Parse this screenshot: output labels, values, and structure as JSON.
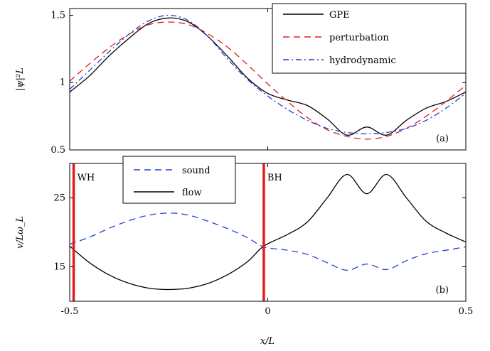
{
  "chart_data": [
    {
      "type": "line",
      "panel_tag": "(a)",
      "ylabel": "|ψ|²L",
      "ylim": [
        0.5,
        1.55
      ],
      "xlim": [
        -0.5,
        0.5
      ],
      "yticks": [
        {
          "value": 0.5,
          "label": "0.5"
        },
        {
          "value": 1.0,
          "label": "1"
        },
        {
          "value": 1.5,
          "label": "1.5"
        }
      ],
      "legend_position": "top-right",
      "grid": false,
      "series": [
        {
          "name": "GPE",
          "color": "#000000",
          "dash": "solid",
          "x": [
            -0.5,
            -0.45,
            -0.4,
            -0.35,
            -0.3,
            -0.25,
            -0.2,
            -0.15,
            -0.1,
            -0.05,
            0.0,
            0.05,
            0.1,
            0.15,
            0.2,
            0.25,
            0.3,
            0.35,
            0.4,
            0.45,
            0.5
          ],
          "y": [
            0.93,
            1.05,
            1.2,
            1.33,
            1.44,
            1.48,
            1.45,
            1.34,
            1.19,
            1.03,
            0.92,
            0.87,
            0.83,
            0.73,
            0.61,
            0.67,
            0.61,
            0.72,
            0.81,
            0.86,
            0.93
          ]
        },
        {
          "name": "perturbation",
          "color": "#e41a1c",
          "dash": "dashed",
          "x": [
            -0.5,
            -0.45,
            -0.4,
            -0.35,
            -0.3,
            -0.25,
            -0.2,
            -0.15,
            -0.1,
            -0.05,
            0.0,
            0.05,
            0.1,
            0.15,
            0.2,
            0.25,
            0.3,
            0.35,
            0.4,
            0.45,
            0.5
          ],
          "y": [
            1.01,
            1.14,
            1.26,
            1.36,
            1.43,
            1.45,
            1.43,
            1.36,
            1.26,
            1.13,
            0.99,
            0.86,
            0.74,
            0.65,
            0.6,
            0.58,
            0.6,
            0.66,
            0.75,
            0.86,
            0.98
          ]
        },
        {
          "name": "hydrodynamic",
          "color": "#1f3fd6",
          "dash": "dashdot",
          "x": [
            -0.5,
            -0.45,
            -0.4,
            -0.35,
            -0.3,
            -0.25,
            -0.2,
            -0.15,
            -0.1,
            -0.05,
            0.0,
            0.05,
            0.1,
            0.15,
            0.2,
            0.25,
            0.3,
            0.35,
            0.4,
            0.45,
            0.5
          ],
          "y": [
            0.95,
            1.09,
            1.23,
            1.36,
            1.46,
            1.5,
            1.46,
            1.34,
            1.17,
            1.02,
            0.9,
            0.8,
            0.72,
            0.66,
            0.63,
            0.62,
            0.63,
            0.66,
            0.72,
            0.81,
            0.92
          ]
        }
      ]
    },
    {
      "type": "line",
      "panel_tag": "(b)",
      "ylabel": "v/Lω_L",
      "xlabel": "x/L",
      "ylim": [
        10,
        30
      ],
      "xlim": [
        -0.5,
        0.5
      ],
      "yticks": [
        {
          "value": 15,
          "label": "15"
        },
        {
          "value": 25,
          "label": "25"
        }
      ],
      "xticks": [
        {
          "value": -0.5,
          "label": "-0.5"
        },
        {
          "value": 0.0,
          "label": "0"
        },
        {
          "value": 0.5,
          "label": "0.5"
        }
      ],
      "legend_position": "top-left",
      "grid": false,
      "vertical_markers": [
        {
          "label": "WH",
          "x": -0.49,
          "color": "#e41a1c"
        },
        {
          "label": "BH",
          "x": -0.01,
          "color": "#e41a1c"
        }
      ],
      "series": [
        {
          "name": "sound",
          "color": "#1f3fd6",
          "dash": "dashed",
          "x": [
            -0.5,
            -0.45,
            -0.4,
            -0.35,
            -0.3,
            -0.25,
            -0.2,
            -0.15,
            -0.1,
            -0.05,
            -0.01,
            0.05,
            0.1,
            0.15,
            0.2,
            0.25,
            0.3,
            0.35,
            0.4,
            0.45,
            0.5
          ],
          "y": [
            18.3,
            19.3,
            20.6,
            21.7,
            22.5,
            22.8,
            22.5,
            21.6,
            20.5,
            19.2,
            17.9,
            17.4,
            16.8,
            15.6,
            14.5,
            15.4,
            14.6,
            15.9,
            16.9,
            17.4,
            17.9
          ]
        },
        {
          "name": "flow",
          "color": "#000000",
          "dash": "solid",
          "x": [
            -0.5,
            -0.45,
            -0.4,
            -0.35,
            -0.3,
            -0.25,
            -0.2,
            -0.15,
            -0.1,
            -0.05,
            -0.01,
            0.05,
            0.1,
            0.15,
            0.2,
            0.25,
            0.3,
            0.35,
            0.4,
            0.45,
            0.5
          ],
          "y": [
            18.0,
            15.6,
            13.8,
            12.6,
            11.9,
            11.7,
            11.9,
            12.6,
            13.9,
            15.8,
            18.0,
            19.7,
            21.5,
            25.0,
            28.4,
            25.6,
            28.4,
            25.0,
            21.6,
            19.9,
            18.6
          ]
        }
      ]
    }
  ]
}
